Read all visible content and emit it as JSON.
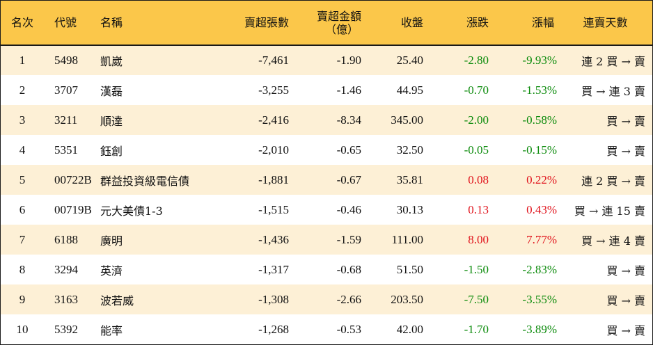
{
  "headers": {
    "rank": "名次",
    "code": "代號",
    "name": "名稱",
    "net_sell_volume": "賣超張數",
    "net_sell_amount_line1": "賣超金額",
    "net_sell_amount_line2": "（億）",
    "close": "收盤",
    "change": "漲跌",
    "change_pct": "漲幅",
    "streak": "連賣天數"
  },
  "colors": {
    "header_bg": "#fbc74a",
    "row_stripe": "#fdf0d6",
    "down": "#0a8a0a",
    "up": "#e0121b"
  },
  "rows": [
    {
      "rank": "1",
      "code": "5498",
      "name": "凱崴",
      "vol": "-7,461",
      "amt": "-1.90",
      "close": "25.40",
      "chg": "-2.80",
      "pct": "-9.93%",
      "dir": "down",
      "streak": "連 2 買 → 賣"
    },
    {
      "rank": "2",
      "code": "3707",
      "name": "漢磊",
      "vol": "-3,255",
      "amt": "-1.46",
      "close": "44.95",
      "chg": "-0.70",
      "pct": "-1.53%",
      "dir": "down",
      "streak": "買 → 連 3 賣"
    },
    {
      "rank": "3",
      "code": "3211",
      "name": "順達",
      "vol": "-2,416",
      "amt": "-8.34",
      "close": "345.00",
      "chg": "-2.00",
      "pct": "-0.58%",
      "dir": "down",
      "streak": "買 → 賣"
    },
    {
      "rank": "4",
      "code": "5351",
      "name": "鈺創",
      "vol": "-2,010",
      "amt": "-0.65",
      "close": "32.50",
      "chg": "-0.05",
      "pct": "-0.15%",
      "dir": "down",
      "streak": "買 → 賣"
    },
    {
      "rank": "5",
      "code": "00722B",
      "name": "群益投資級電信債",
      "vol": "-1,881",
      "amt": "-0.67",
      "close": "35.81",
      "chg": "0.08",
      "pct": "0.22%",
      "dir": "up",
      "streak": "連 2 買 → 賣"
    },
    {
      "rank": "6",
      "code": "00719B",
      "name": "元大美債1-3",
      "vol": "-1,515",
      "amt": "-0.46",
      "close": "30.13",
      "chg": "0.13",
      "pct": "0.43%",
      "dir": "up",
      "streak": "買 → 連 15 賣"
    },
    {
      "rank": "7",
      "code": "6188",
      "name": "廣明",
      "vol": "-1,436",
      "amt": "-1.59",
      "close": "111.00",
      "chg": "8.00",
      "pct": "7.77%",
      "dir": "up",
      "streak": "買 → 連 4 賣"
    },
    {
      "rank": "8",
      "code": "3294",
      "name": "英濟",
      "vol": "-1,317",
      "amt": "-0.68",
      "close": "51.50",
      "chg": "-1.50",
      "pct": "-2.83%",
      "dir": "down",
      "streak": "買 → 賣"
    },
    {
      "rank": "9",
      "code": "3163",
      "name": "波若威",
      "vol": "-1,308",
      "amt": "-2.66",
      "close": "203.50",
      "chg": "-7.50",
      "pct": "-3.55%",
      "dir": "down",
      "streak": "買 → 賣"
    },
    {
      "rank": "10",
      "code": "5392",
      "name": "能率",
      "vol": "-1,268",
      "amt": "-0.53",
      "close": "42.00",
      "chg": "-1.70",
      "pct": "-3.89%",
      "dir": "down",
      "streak": "買 → 賣"
    }
  ]
}
